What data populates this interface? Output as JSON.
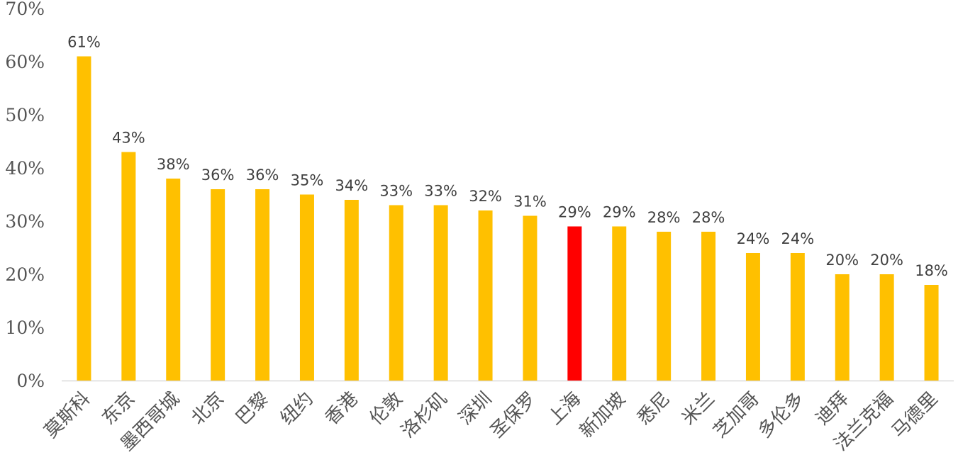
{
  "chart_data": {
    "type": "bar",
    "title": "",
    "xlabel": "",
    "ylabel": "",
    "ylim": [
      0,
      0.7
    ],
    "yticks": [
      0,
      0.1,
      0.2,
      0.3,
      0.4,
      0.5,
      0.6,
      0.7
    ],
    "ytick_labels": [
      "0%",
      "10%",
      "20%",
      "30%",
      "40%",
      "50%",
      "60%",
      "70%"
    ],
    "grid": false,
    "legend": "none",
    "categories": [
      "莫斯科",
      "东京",
      "墨西哥城",
      "北京",
      "巴黎",
      "纽约",
      "香港",
      "伦敦",
      "洛杉矶",
      "深圳",
      "圣保罗",
      "上海",
      "新加坡",
      "悉尼",
      "米兰",
      "芝加哥",
      "多伦多",
      "迪拜",
      "法兰克福",
      "马德里"
    ],
    "values": [
      0.61,
      0.43,
      0.38,
      0.36,
      0.36,
      0.35,
      0.34,
      0.33,
      0.33,
      0.32,
      0.31,
      0.29,
      0.29,
      0.28,
      0.28,
      0.24,
      0.24,
      0.2,
      0.2,
      0.18
    ],
    "data_labels": [
      "61%",
      "43%",
      "38%",
      "36%",
      "36%",
      "35%",
      "34%",
      "33%",
      "33%",
      "32%",
      "31%",
      "29%",
      "29%",
      "28%",
      "28%",
      "24%",
      "24%",
      "20%",
      "20%",
      "18%"
    ],
    "highlight_category": "上海",
    "colors": {
      "bar": "#FFC000",
      "highlight": "#FF0000",
      "axis": "#D9D9D9"
    }
  }
}
